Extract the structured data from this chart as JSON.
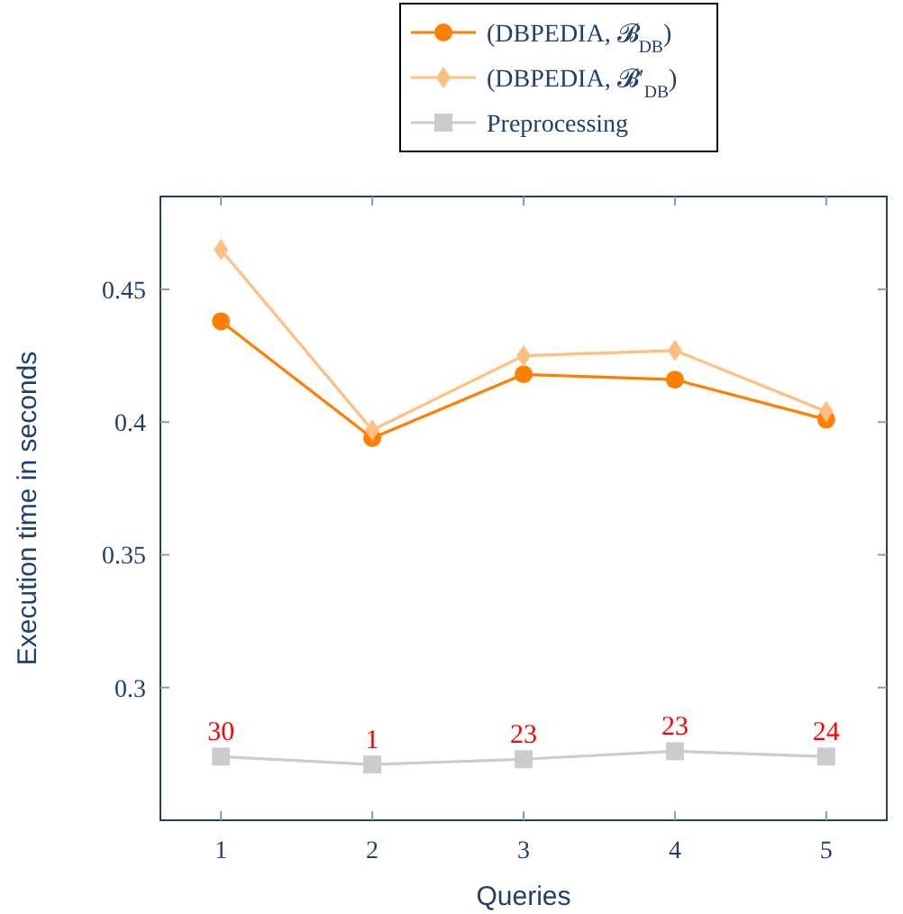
{
  "chart_data": {
    "type": "line",
    "xlabel": "Queries",
    "ylabel": "Execution time in seconds",
    "x": [
      1,
      2,
      3,
      4,
      5
    ],
    "series": [
      {
        "name": "(DBPEDIA, 𝓑$_{DB}$)",
        "color": "#ff7f00",
        "marker": "circle",
        "values": [
          0.438,
          0.394,
          0.418,
          0.416,
          0.401
        ]
      },
      {
        "name": "(DBPEDIA, 𝓑′$_{DB}$)",
        "color": "#ffbf80",
        "marker": "diamond",
        "values": [
          0.465,
          0.397,
          0.425,
          0.427,
          0.404
        ]
      },
      {
        "name": "Preprocessing",
        "color": "#cccccc",
        "marker": "square",
        "values": [
          0.274,
          0.271,
          0.273,
          0.276,
          0.274
        ]
      }
    ],
    "xlim": [
      0.6,
      5.4
    ],
    "ylim": [
      0.25,
      0.485
    ],
    "xticks": [
      1,
      2,
      3,
      4,
      5
    ],
    "yticks": [
      0.3,
      0.35,
      0.4,
      0.45
    ],
    "legend": "top",
    "annotations": [
      {
        "text": "30",
        "x": 1,
        "y": 0.274
      },
      {
        "text": "1",
        "x": 2,
        "y": 0.271
      },
      {
        "text": "23",
        "x": 3,
        "y": 0.273
      },
      {
        "text": "23",
        "x": 4,
        "y": 0.276
      },
      {
        "text": "24",
        "x": 5,
        "y": 0.274
      }
    ]
  }
}
